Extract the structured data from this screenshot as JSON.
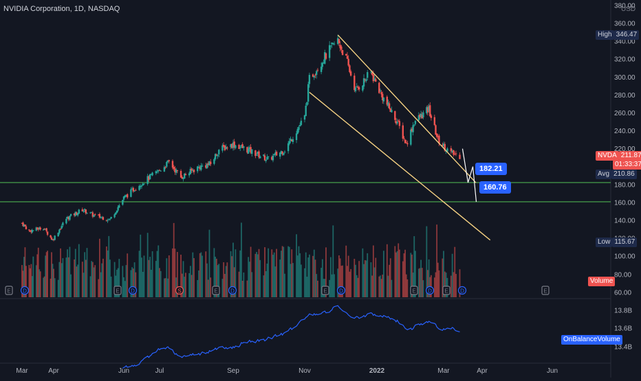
{
  "title": "NVIDIA Corporation, 1D, NASDAQ",
  "currency": "USD",
  "badges": {
    "high": {
      "label": "High",
      "value": "346.47"
    },
    "symbol": {
      "label": "NVDA",
      "value": "211.87",
      "countdown": "01:33:37"
    },
    "avg": {
      "label": "Avg",
      "value": "210.86"
    },
    "low": {
      "label": "Low",
      "value": "115.67"
    }
  },
  "annotations": {
    "target1": "182.21",
    "target2": "160.76"
  },
  "indicators": {
    "volume_label": "Volume",
    "obv_label": "OnBalanceVolume"
  },
  "earnings_markers": [
    "E",
    "D",
    "E",
    "D",
    "S",
    "E",
    "D",
    "E",
    "D",
    "E",
    "D",
    "E",
    "D",
    "E"
  ],
  "colors": {
    "background": "#131722",
    "up": "#26a69a",
    "down": "#ef5350",
    "channel": "#f5d183",
    "support": "#4caf50",
    "obv": "#2962ff",
    "callout": "#2962ff"
  },
  "chart_data": [
    {
      "type": "candlestick",
      "title": "NVIDIA Corporation, 1D, NASDAQ",
      "x_ticks": [
        "Mar",
        "Apr",
        "Jun",
        "Jul",
        "Sep",
        "Nov",
        "2022",
        "Mar",
        "Apr",
        "Jun"
      ],
      "y_ticks": [
        380,
        360,
        340,
        320,
        300,
        280,
        260,
        240,
        220,
        200,
        180,
        160,
        140,
        120
      ],
      "y_tick_labels": [
        "380.00",
        "360.00",
        "340.00",
        "320.00",
        "300.00",
        "280.00",
        "260.00",
        "240.00",
        "220.00",
        "200.00",
        "180.00",
        "160.00",
        "140.00",
        "120.00"
      ],
      "ylim": [
        115,
        385
      ],
      "grid": false,
      "close_path": [
        {
          "x": "2021-03-01",
          "y": 137
        },
        {
          "x": "2021-03-08",
          "y": 128
        },
        {
          "x": "2021-03-22",
          "y": 132
        },
        {
          "x": "2021-03-31",
          "y": 118
        },
        {
          "x": "2021-04-12",
          "y": 142
        },
        {
          "x": "2021-04-26",
          "y": 152
        },
        {
          "x": "2021-05-05",
          "y": 146
        },
        {
          "x": "2021-05-20",
          "y": 141
        },
        {
          "x": "2021-06-01",
          "y": 165
        },
        {
          "x": "2021-06-14",
          "y": 180
        },
        {
          "x": "2021-06-30",
          "y": 195
        },
        {
          "x": "2021-07-09",
          "y": 205
        },
        {
          "x": "2021-07-19",
          "y": 188
        },
        {
          "x": "2021-08-02",
          "y": 199
        },
        {
          "x": "2021-08-13",
          "y": 203
        },
        {
          "x": "2021-08-20",
          "y": 219
        },
        {
          "x": "2021-09-01",
          "y": 225
        },
        {
          "x": "2021-09-15",
          "y": 218
        },
        {
          "x": "2021-10-01",
          "y": 208
        },
        {
          "x": "2021-10-15",
          "y": 219
        },
        {
          "x": "2021-11-01",
          "y": 255
        },
        {
          "x": "2021-11-05",
          "y": 298
        },
        {
          "x": "2021-11-22",
          "y": 330
        },
        {
          "x": "2021-11-29",
          "y": 341
        },
        {
          "x": "2021-12-06",
          "y": 320
        },
        {
          "x": "2021-12-14",
          "y": 285
        },
        {
          "x": "2021-12-27",
          "y": 305
        },
        {
          "x": "2022-01-05",
          "y": 280
        },
        {
          "x": "2022-01-19",
          "y": 250
        },
        {
          "x": "2022-01-27",
          "y": 225
        },
        {
          "x": "2022-02-03",
          "y": 250
        },
        {
          "x": "2022-02-16",
          "y": 264
        },
        {
          "x": "2022-02-24",
          "y": 230
        },
        {
          "x": "2022-03-07",
          "y": 215
        },
        {
          "x": "2022-03-14",
          "y": 211.87
        }
      ],
      "high": 346.47,
      "low": 115.67,
      "last": 211.87,
      "avg": 210.86,
      "horizontal_lines": [
        182.21,
        160.76
      ],
      "channel_upper": [
        {
          "x": "2021-11-29",
          "y": 347
        },
        {
          "x": "2022-03-27",
          "y": 182
        }
      ],
      "channel_lower": [
        {
          "x": "2021-11-05",
          "y": 283
        },
        {
          "x": "2022-04-08",
          "y": 118
        }
      ]
    },
    {
      "type": "bar",
      "name": "Volume",
      "note": "daily volume, relative heights"
    },
    {
      "type": "line",
      "name": "OnBalanceVolume",
      "y_ticks": [
        13.8,
        13.6,
        13.4
      ],
      "y_tick_labels": [
        "13.8B",
        "13.6B",
        "13.4B"
      ]
    }
  ]
}
